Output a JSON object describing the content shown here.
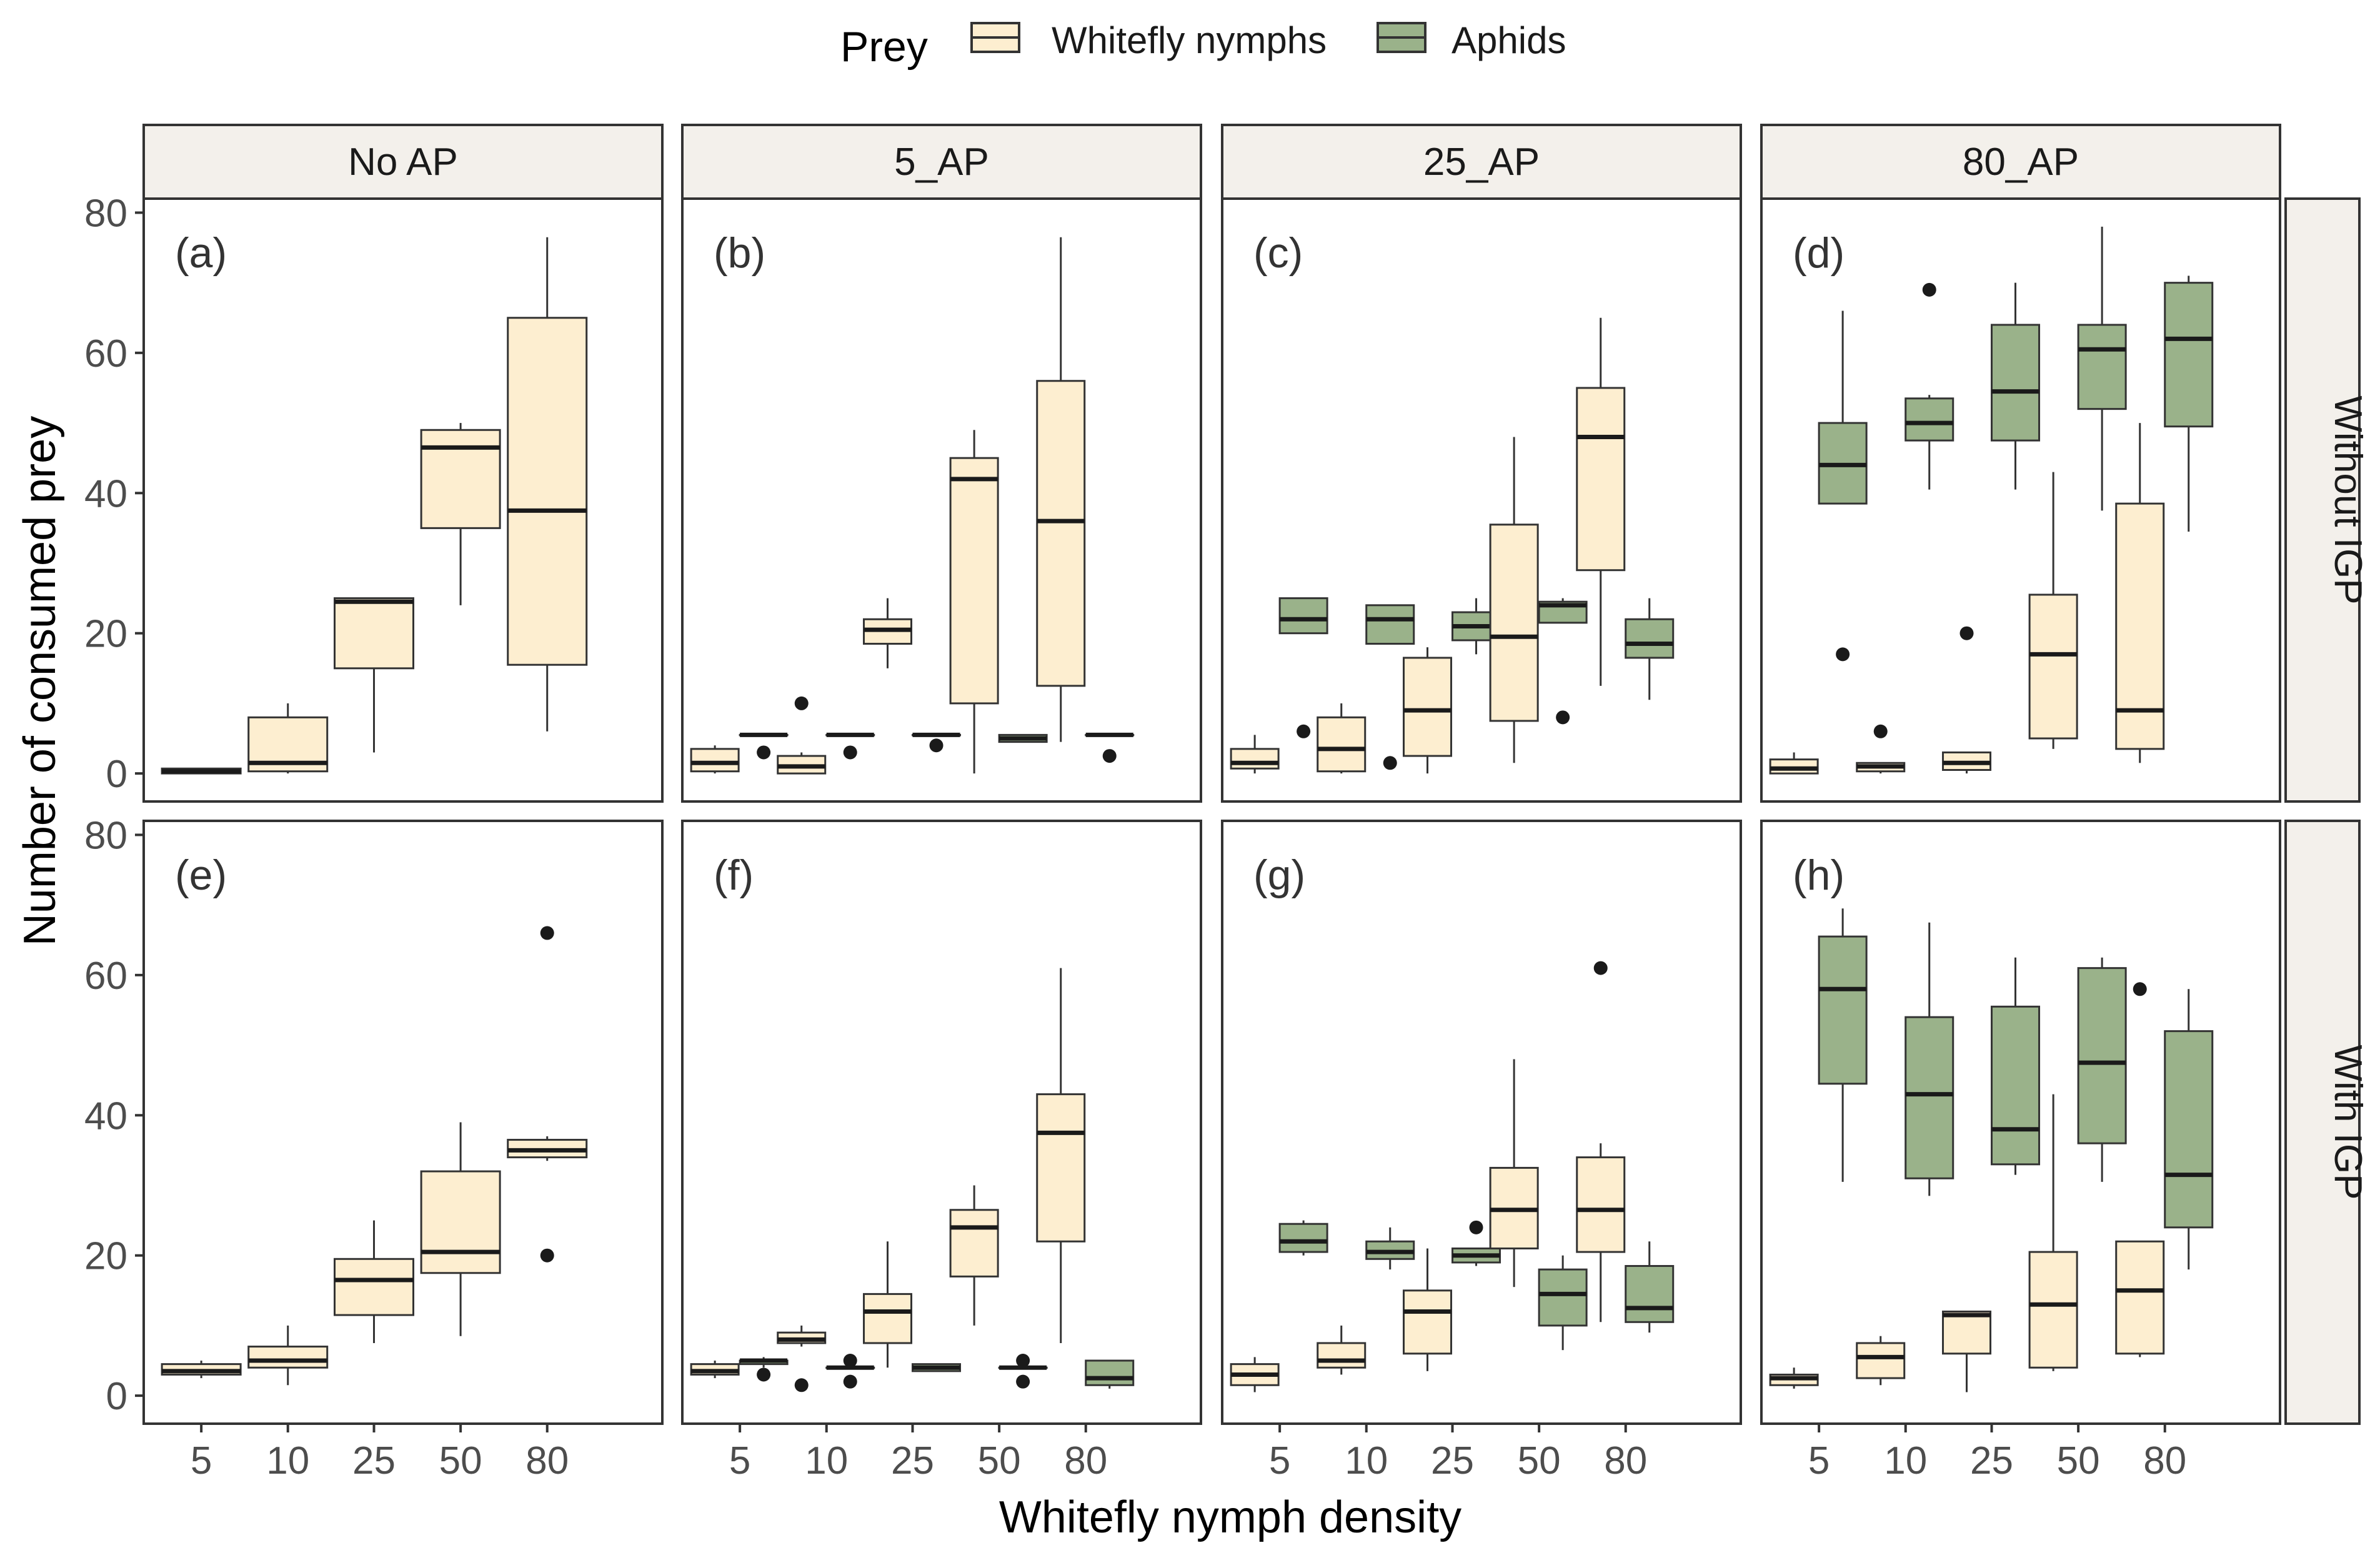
{
  "colors": {
    "whitefly": "#FDEED0",
    "aphids": "#9AB28A",
    "strip_fill": "#F3F0EB",
    "axis_text": "#4D4D4D",
    "outline": "#000000"
  },
  "chart_data": {
    "type": "boxplot",
    "xlabel": "Whitefly nymph density",
    "ylabel": "Number of consumed prey",
    "legend": {
      "title": "Prey",
      "position": "top",
      "entries": [
        {
          "key": "whitefly",
          "label": "Whitefly nymphs"
        },
        {
          "key": "aphids",
          "label": "Aphids"
        }
      ]
    },
    "ylim": [
      -4,
      82
    ],
    "yticks": [
      0,
      20,
      40,
      60,
      80
    ],
    "categories": [
      "5",
      "10",
      "25",
      "50",
      "80"
    ],
    "columns": [
      "No AP",
      "5_AP",
      "25_AP",
      "80_AP"
    ],
    "rows": [
      "Without IGP",
      "With IGP"
    ],
    "panels": [
      {
        "tag": "(a)",
        "row": 0,
        "col": 0,
        "boxes": [
          {
            "prey": "whitefly",
            "x": "5",
            "min": 0,
            "q1": 0,
            "median": 0.3,
            "q3": 0.7,
            "max": 0.7,
            "outliers": []
          },
          {
            "prey": "whitefly",
            "x": "10",
            "min": 0,
            "q1": 0.3,
            "median": 1.5,
            "q3": 8,
            "max": 10,
            "outliers": []
          },
          {
            "prey": "whitefly",
            "x": "25",
            "min": 3,
            "q1": 15,
            "median": 24.5,
            "q3": 25,
            "max": 25,
            "outliers": []
          },
          {
            "prey": "whitefly",
            "x": "50",
            "min": 24,
            "q1": 35,
            "median": 46.5,
            "q3": 49,
            "max": 50,
            "outliers": []
          },
          {
            "prey": "whitefly",
            "x": "80",
            "min": 6,
            "q1": 15.5,
            "median": 37.5,
            "q3": 65,
            "max": 76.5,
            "outliers": []
          }
        ]
      },
      {
        "tag": "(b)",
        "row": 0,
        "col": 1,
        "boxes": [
          {
            "prey": "whitefly",
            "x": "5",
            "min": 0,
            "q1": 0.3,
            "median": 1.5,
            "q3": 3.5,
            "max": 4,
            "outliers": []
          },
          {
            "prey": "aphids",
            "x": "5",
            "min": 5.5,
            "q1": 5.5,
            "median": 5.5,
            "q3": 5.5,
            "max": 5.5,
            "outliers": [
              3
            ]
          },
          {
            "prey": "whitefly",
            "x": "10",
            "min": 0,
            "q1": 0,
            "median": 1,
            "q3": 2.5,
            "max": 3,
            "outliers": [
              10
            ]
          },
          {
            "prey": "aphids",
            "x": "10",
            "min": 5.5,
            "q1": 5.5,
            "median": 5.5,
            "q3": 5.5,
            "max": 5.5,
            "outliers": [
              3
            ]
          },
          {
            "prey": "whitefly",
            "x": "25",
            "min": 15,
            "q1": 18.5,
            "median": 20.5,
            "q3": 22,
            "max": 25,
            "outliers": []
          },
          {
            "prey": "aphids",
            "x": "25",
            "min": 5.5,
            "q1": 5.5,
            "median": 5.5,
            "q3": 5.5,
            "max": 5.5,
            "outliers": [
              4
            ]
          },
          {
            "prey": "whitefly",
            "x": "50",
            "min": 0,
            "q1": 10,
            "median": 42,
            "q3": 45,
            "max": 49,
            "outliers": []
          },
          {
            "prey": "aphids",
            "x": "50",
            "min": 4.5,
            "q1": 4.5,
            "median": 5,
            "q3": 5.5,
            "max": 5.5,
            "outliers": []
          },
          {
            "prey": "whitefly",
            "x": "80",
            "min": 4.5,
            "q1": 12.5,
            "median": 36,
            "q3": 56,
            "max": 76.5,
            "outliers": []
          },
          {
            "prey": "aphids",
            "x": "80",
            "min": 5.5,
            "q1": 5.5,
            "median": 5.5,
            "q3": 5.5,
            "max": 5.5,
            "outliers": [
              2.5
            ]
          }
        ]
      },
      {
        "tag": "(c)",
        "row": 0,
        "col": 2,
        "boxes": [
          {
            "prey": "whitefly",
            "x": "5",
            "min": 0,
            "q1": 0.7,
            "median": 1.5,
            "q3": 3.5,
            "max": 5.5,
            "outliers": []
          },
          {
            "prey": "aphids",
            "x": "5",
            "min": 20,
            "q1": 20,
            "median": 22,
            "q3": 25,
            "max": 25,
            "outliers": [
              6
            ]
          },
          {
            "prey": "whitefly",
            "x": "10",
            "min": 0,
            "q1": 0.3,
            "median": 3.5,
            "q3": 8,
            "max": 10,
            "outliers": []
          },
          {
            "prey": "aphids",
            "x": "10",
            "min": 18.5,
            "q1": 18.5,
            "median": 22,
            "q3": 24,
            "max": 24,
            "outliers": [
              1.5
            ]
          },
          {
            "prey": "whitefly",
            "x": "25",
            "min": 0,
            "q1": 2.5,
            "median": 9,
            "q3": 16.5,
            "max": 18,
            "outliers": []
          },
          {
            "prey": "aphids",
            "x": "25",
            "min": 17,
            "q1": 19,
            "median": 21,
            "q3": 23,
            "max": 25,
            "outliers": []
          },
          {
            "prey": "whitefly",
            "x": "50",
            "min": 1.5,
            "q1": 7.5,
            "median": 19.5,
            "q3": 35.5,
            "max": 48,
            "outliers": []
          },
          {
            "prey": "aphids",
            "x": "50",
            "min": 21.5,
            "q1": 21.5,
            "median": 24,
            "q3": 24.5,
            "max": 25,
            "outliers": [
              8
            ]
          },
          {
            "prey": "whitefly",
            "x": "80",
            "min": 12.5,
            "q1": 29,
            "median": 48,
            "q3": 55,
            "max": 65,
            "outliers": []
          },
          {
            "prey": "aphids",
            "x": "80",
            "min": 10.5,
            "q1": 16.5,
            "median": 18.5,
            "q3": 22,
            "max": 25,
            "outliers": []
          }
        ]
      },
      {
        "tag": "(d)",
        "row": 0,
        "col": 3,
        "boxes": [
          {
            "prey": "whitefly",
            "x": "5",
            "min": 0,
            "q1": 0,
            "median": 0.7,
            "q3": 2,
            "max": 3,
            "outliers": []
          },
          {
            "prey": "aphids",
            "x": "5",
            "min": 38.5,
            "q1": 38.5,
            "median": 44,
            "q3": 50,
            "max": 66,
            "outliers": [
              17
            ]
          },
          {
            "prey": "whitefly",
            "x": "10",
            "min": 0,
            "q1": 0.3,
            "median": 1,
            "q3": 1.5,
            "max": 1.5,
            "outliers": [
              6
            ]
          },
          {
            "prey": "aphids",
            "x": "10",
            "min": 40.5,
            "q1": 47.5,
            "median": 50,
            "q3": 53.5,
            "max": 54,
            "outliers": [
              69
            ]
          },
          {
            "prey": "whitefly",
            "x": "25",
            "min": 0,
            "q1": 0.5,
            "median": 1.5,
            "q3": 3,
            "max": 3,
            "outliers": [
              20
            ]
          },
          {
            "prey": "aphids",
            "x": "25",
            "min": 40.5,
            "q1": 47.5,
            "median": 54.5,
            "q3": 64,
            "max": 70,
            "outliers": []
          },
          {
            "prey": "whitefly",
            "x": "50",
            "min": 3.5,
            "q1": 5,
            "median": 17,
            "q3": 25.5,
            "max": 43,
            "outliers": []
          },
          {
            "prey": "aphids",
            "x": "50",
            "min": 37.5,
            "q1": 52,
            "median": 60.5,
            "q3": 64,
            "max": 78,
            "outliers": []
          },
          {
            "prey": "whitefly",
            "x": "80",
            "min": 1.5,
            "q1": 3.5,
            "median": 9,
            "q3": 38.5,
            "max": 50,
            "outliers": []
          },
          {
            "prey": "aphids",
            "x": "80",
            "min": 34.5,
            "q1": 49.5,
            "median": 62,
            "q3": 70,
            "max": 71,
            "outliers": []
          }
        ]
      },
      {
        "tag": "(e)",
        "row": 1,
        "col": 0,
        "boxes": [
          {
            "prey": "whitefly",
            "x": "5",
            "min": 2.5,
            "q1": 3,
            "median": 3.5,
            "q3": 4.5,
            "max": 5,
            "outliers": []
          },
          {
            "prey": "whitefly",
            "x": "10",
            "min": 1.5,
            "q1": 4,
            "median": 5,
            "q3": 7,
            "max": 10,
            "outliers": []
          },
          {
            "prey": "whitefly",
            "x": "25",
            "min": 7.5,
            "q1": 11.5,
            "median": 16.5,
            "q3": 19.5,
            "max": 25,
            "outliers": []
          },
          {
            "prey": "whitefly",
            "x": "50",
            "min": 8.5,
            "q1": 17.5,
            "median": 20.5,
            "q3": 32,
            "max": 39,
            "outliers": []
          },
          {
            "prey": "whitefly",
            "x": "80",
            "min": 33.5,
            "q1": 34,
            "median": 35,
            "q3": 36.5,
            "max": 37,
            "outliers": [
              20,
              66
            ]
          }
        ]
      },
      {
        "tag": "(f)",
        "row": 1,
        "col": 1,
        "boxes": [
          {
            "prey": "whitefly",
            "x": "5",
            "min": 2.5,
            "q1": 3,
            "median": 3.5,
            "q3": 4.5,
            "max": 5,
            "outliers": []
          },
          {
            "prey": "aphids",
            "x": "5",
            "min": 4,
            "q1": 4.5,
            "median": 5,
            "q3": 5,
            "max": 5.5,
            "outliers": [
              3
            ]
          },
          {
            "prey": "whitefly",
            "x": "10",
            "min": 7,
            "q1": 7.5,
            "median": 8,
            "q3": 9,
            "max": 10,
            "outliers": [
              1.5
            ]
          },
          {
            "prey": "aphids",
            "x": "10",
            "min": 4,
            "q1": 4,
            "median": 4,
            "q3": 4,
            "max": 4,
            "outliers": [
              2,
              5
            ]
          },
          {
            "prey": "whitefly",
            "x": "25",
            "min": 4,
            "q1": 7.5,
            "median": 12,
            "q3": 14.5,
            "max": 22,
            "outliers": []
          },
          {
            "prey": "aphids",
            "x": "25",
            "min": 3.5,
            "q1": 3.5,
            "median": 4,
            "q3": 4.5,
            "max": 4.5,
            "outliers": []
          },
          {
            "prey": "whitefly",
            "x": "50",
            "min": 10,
            "q1": 17,
            "median": 24,
            "q3": 26.5,
            "max": 30,
            "outliers": []
          },
          {
            "prey": "aphids",
            "x": "50",
            "min": 4,
            "q1": 4,
            "median": 4,
            "q3": 4,
            "max": 4,
            "outliers": [
              2,
              5
            ]
          },
          {
            "prey": "whitefly",
            "x": "80",
            "min": 7.5,
            "q1": 22,
            "median": 37.5,
            "q3": 43,
            "max": 61,
            "outliers": []
          },
          {
            "prey": "aphids",
            "x": "80",
            "min": 1,
            "q1": 1.5,
            "median": 2.5,
            "q3": 5,
            "max": 5,
            "outliers": []
          }
        ]
      },
      {
        "tag": "(g)",
        "row": 1,
        "col": 2,
        "boxes": [
          {
            "prey": "whitefly",
            "x": "5",
            "min": 0.5,
            "q1": 1.5,
            "median": 3,
            "q3": 4.5,
            "max": 5.5,
            "outliers": []
          },
          {
            "prey": "aphids",
            "x": "5",
            "min": 20,
            "q1": 20.5,
            "median": 22,
            "q3": 24.5,
            "max": 25,
            "outliers": []
          },
          {
            "prey": "whitefly",
            "x": "10",
            "min": 3,
            "q1": 4,
            "median": 5,
            "q3": 7.5,
            "max": 10,
            "outliers": []
          },
          {
            "prey": "aphids",
            "x": "10",
            "min": 18,
            "q1": 19.5,
            "median": 20.5,
            "q3": 22,
            "max": 24,
            "outliers": []
          },
          {
            "prey": "whitefly",
            "x": "25",
            "min": 3.5,
            "q1": 6,
            "median": 12,
            "q3": 15,
            "max": 21,
            "outliers": []
          },
          {
            "prey": "aphids",
            "x": "25",
            "min": 18.5,
            "q1": 19,
            "median": 20,
            "q3": 21,
            "max": 21,
            "outliers": [
              24
            ]
          },
          {
            "prey": "whitefly",
            "x": "50",
            "min": 15.5,
            "q1": 21,
            "median": 26.5,
            "q3": 32.5,
            "max": 48,
            "outliers": []
          },
          {
            "prey": "aphids",
            "x": "50",
            "min": 6.5,
            "q1": 10,
            "median": 14.5,
            "q3": 18,
            "max": 20,
            "outliers": []
          },
          {
            "prey": "whitefly",
            "x": "80",
            "min": 10.5,
            "q1": 20.5,
            "median": 26.5,
            "q3": 34,
            "max": 36,
            "outliers": [
              61
            ]
          },
          {
            "prey": "aphids",
            "x": "80",
            "min": 9,
            "q1": 10.5,
            "median": 12.5,
            "q3": 18.5,
            "max": 22,
            "outliers": []
          }
        ]
      },
      {
        "tag": "(h)",
        "row": 1,
        "col": 3,
        "boxes": [
          {
            "prey": "whitefly",
            "x": "5",
            "min": 1,
            "q1": 1.5,
            "median": 2.5,
            "q3": 3,
            "max": 4,
            "outliers": []
          },
          {
            "prey": "aphids",
            "x": "5",
            "min": 30.5,
            "q1": 44.5,
            "median": 58,
            "q3": 65.5,
            "max": 69.5,
            "outliers": []
          },
          {
            "prey": "whitefly",
            "x": "10",
            "min": 1.5,
            "q1": 2.5,
            "median": 5.5,
            "q3": 7.5,
            "max": 8.5,
            "outliers": []
          },
          {
            "prey": "aphids",
            "x": "10",
            "min": 28.5,
            "q1": 31,
            "median": 43,
            "q3": 54,
            "max": 67.5,
            "outliers": []
          },
          {
            "prey": "whitefly",
            "x": "25",
            "min": 0.5,
            "q1": 6,
            "median": 11.5,
            "q3": 12,
            "max": 12,
            "outliers": []
          },
          {
            "prey": "aphids",
            "x": "25",
            "min": 31.5,
            "q1": 33,
            "median": 38,
            "q3": 55.5,
            "max": 62.5,
            "outliers": []
          },
          {
            "prey": "whitefly",
            "x": "50",
            "min": 3.5,
            "q1": 4,
            "median": 13,
            "q3": 20.5,
            "max": 43,
            "outliers": []
          },
          {
            "prey": "aphids",
            "x": "50",
            "min": 30.5,
            "q1": 36,
            "median": 47.5,
            "q3": 61,
            "max": 62.5,
            "outliers": []
          },
          {
            "prey": "whitefly",
            "x": "80",
            "min": 5.5,
            "q1": 6,
            "median": 15,
            "q3": 22,
            "max": 22,
            "outliers": [
              58
            ]
          },
          {
            "prey": "aphids",
            "x": "80",
            "min": 18,
            "q1": 24,
            "median": 31.5,
            "q3": 52,
            "max": 58,
            "outliers": []
          }
        ]
      }
    ]
  }
}
